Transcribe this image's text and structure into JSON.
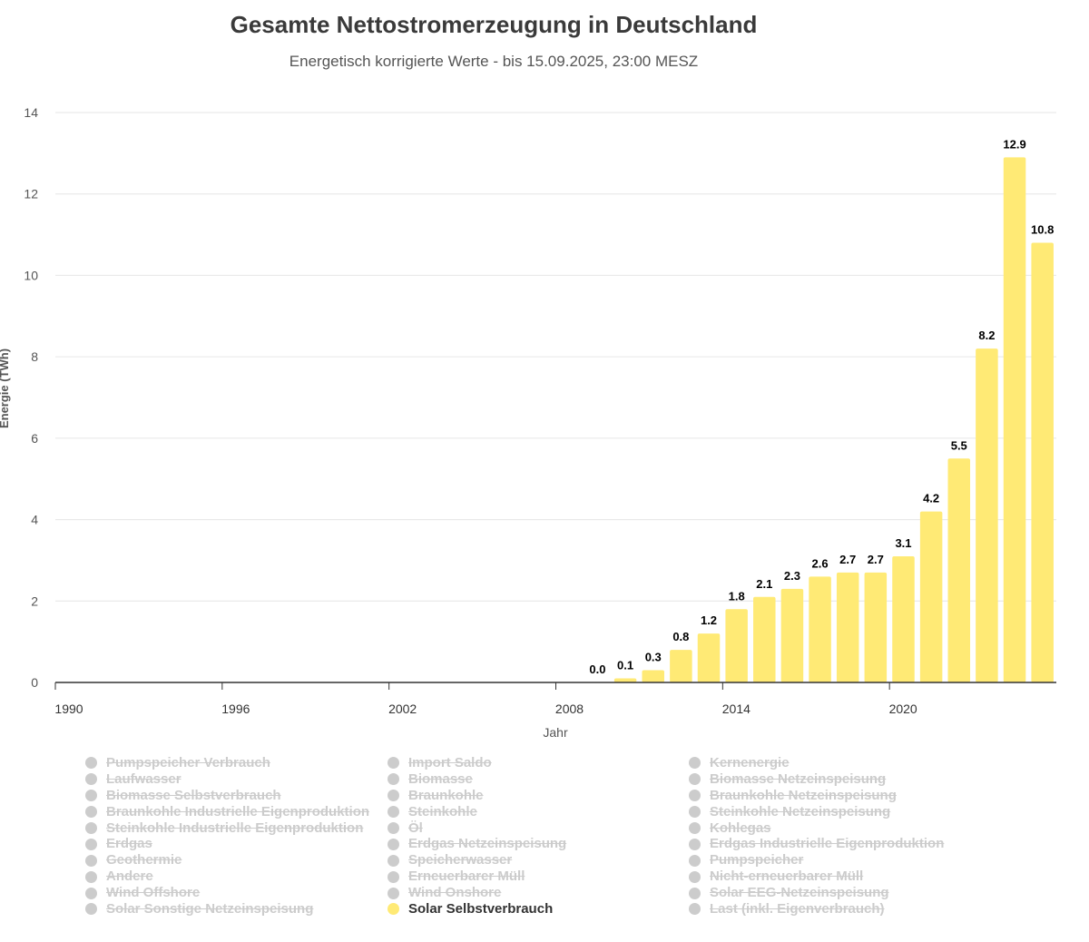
{
  "chart_data": {
    "type": "bar",
    "title": "Gesamte Nettostromerzeugung in Deutschland",
    "subtitle": "Energetisch korrigierte Werte - bis 15.09.2025, 23:00 MESZ",
    "xlabel": "Jahr",
    "ylabel": "Energie (TWh)",
    "ylim": [
      0,
      14
    ],
    "yticks": [
      0,
      2,
      4,
      6,
      8,
      10,
      12,
      14
    ],
    "xlim": [
      1990,
      2025
    ],
    "xticks": [
      1990,
      1996,
      2002,
      2008,
      2014,
      2020
    ],
    "grid": true,
    "series": [
      {
        "name": "Solar Selbstverbrauch",
        "color": "#ffea75",
        "x": [
          2009,
          2010,
          2011,
          2012,
          2013,
          2014,
          2015,
          2016,
          2017,
          2018,
          2019,
          2020,
          2021,
          2022,
          2023,
          2024,
          2025
        ],
        "values": [
          0.0,
          0.1,
          0.3,
          0.8,
          1.2,
          1.8,
          2.1,
          2.3,
          2.6,
          2.7,
          2.7,
          3.1,
          4.2,
          5.5,
          8.2,
          12.9,
          10.8
        ],
        "labels": [
          "0.0",
          "0.1",
          "0.3",
          "0.8",
          "1.2",
          "1.8",
          "2.1",
          "2.3",
          "2.6",
          "2.7",
          "2.7",
          "3.1",
          "4.2",
          "5.5",
          "8.2",
          "12.9",
          "10.8"
        ]
      }
    ]
  },
  "legend": {
    "columns": [
      [
        {
          "label": "Pumpspeicher Verbrauch",
          "active": false
        },
        {
          "label": "Laufwasser",
          "active": false
        },
        {
          "label": "Biomasse Selbstverbrauch",
          "active": false
        },
        {
          "label": "Braunkohle Industrielle Eigenproduktion",
          "active": false
        },
        {
          "label": "Steinkohle Industrielle Eigenproduktion",
          "active": false
        },
        {
          "label": "Erdgas",
          "active": false
        },
        {
          "label": "Geothermie",
          "active": false
        },
        {
          "label": "Andere",
          "active": false
        },
        {
          "label": "Wind Offshore",
          "active": false
        },
        {
          "label": "Solar Sonstige Netzeinspeisung",
          "active": false
        }
      ],
      [
        {
          "label": "Import Saldo",
          "active": false
        },
        {
          "label": "Biomasse",
          "active": false
        },
        {
          "label": "Braunkohle",
          "active": false
        },
        {
          "label": "Steinkohle",
          "active": false
        },
        {
          "label": "Öl",
          "active": false
        },
        {
          "label": "Erdgas Netzeinspeisung",
          "active": false
        },
        {
          "label": "Speicherwasser",
          "active": false
        },
        {
          "label": "Erneuerbarer Müll",
          "active": false
        },
        {
          "label": "Wind Onshore",
          "active": false
        },
        {
          "label": "Solar Selbstverbrauch",
          "active": true
        }
      ],
      [
        {
          "label": "Kernenergie",
          "active": false
        },
        {
          "label": "Biomasse Netzeinspeisung",
          "active": false
        },
        {
          "label": "Braunkohle Netzeinspeisung",
          "active": false
        },
        {
          "label": "Steinkohle Netzeinspeisung",
          "active": false
        },
        {
          "label": "Kohlegas",
          "active": false
        },
        {
          "label": "Erdgas Industrielle Eigenproduktion",
          "active": false
        },
        {
          "label": "Pumpspeicher",
          "active": false
        },
        {
          "label": "Nicht-erneuerbarer Müll",
          "active": false
        },
        {
          "label": "Solar EEG-Netzeinspeisung",
          "active": false
        },
        {
          "label": "Last (inkl. Eigenverbrauch)",
          "active": false
        }
      ]
    ]
  }
}
